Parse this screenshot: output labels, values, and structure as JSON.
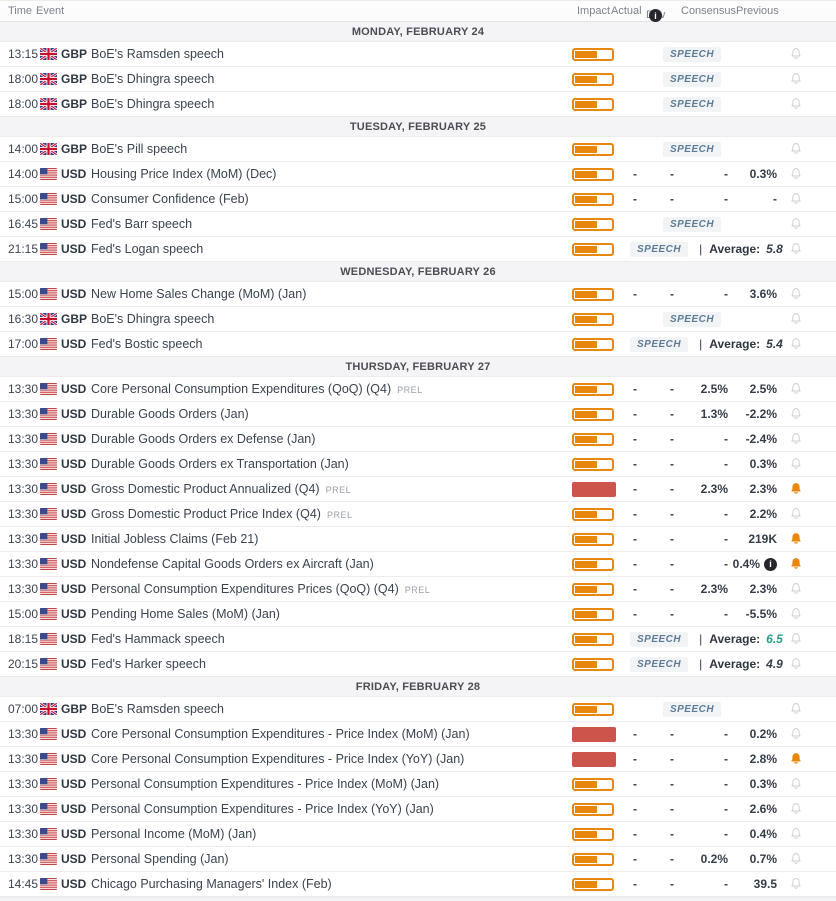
{
  "colors": {
    "impact_medium": "#e8870e",
    "impact_high": "#cc544a",
    "bell_active": "#e8870e",
    "bell_inactive": "#c9cdd3",
    "average_highlight": "#2a9c85",
    "speech_text": "#5b7c99"
  },
  "header": {
    "time": "Time",
    "event": "Event",
    "impact": "Impact",
    "actual": "Actual",
    "dev": "Dev",
    "consensus": "Consensus",
    "previous": "Previous",
    "dev_info": "i"
  },
  "labels": {
    "speech": "SPEECH",
    "average": "Average:",
    "divider": "|",
    "prel": "PREL",
    "revised_info": "i"
  },
  "days": [
    {
      "label": "MONDAY, FEBRUARY 24",
      "events": [
        {
          "time": "13:15",
          "currency": "GBP",
          "title": "BoE's Ramsden speech",
          "impact": "medium",
          "type": "speech",
          "bell": false
        },
        {
          "time": "18:00",
          "currency": "GBP",
          "title": "BoE's Dhingra speech",
          "impact": "medium",
          "type": "speech",
          "bell": false
        },
        {
          "time": "18:00",
          "currency": "GBP",
          "title": "BoE's Dhingra speech",
          "impact": "medium",
          "type": "speech",
          "bell": false
        }
      ]
    },
    {
      "label": "TUESDAY, FEBRUARY 25",
      "events": [
        {
          "time": "14:00",
          "currency": "GBP",
          "title": "BoE's Pill speech",
          "impact": "medium",
          "type": "speech",
          "bell": false
        },
        {
          "time": "14:00",
          "currency": "USD",
          "title": "Housing Price Index (MoM) (Dec)",
          "impact": "medium",
          "type": "data",
          "actual": "-",
          "dev": "-",
          "consensus": "-",
          "previous": "0.3%",
          "bell": false
        },
        {
          "time": "15:00",
          "currency": "USD",
          "title": "Consumer Confidence (Feb)",
          "impact": "medium",
          "type": "data",
          "actual": "-",
          "dev": "-",
          "consensus": "-",
          "previous": "-",
          "bell": false
        },
        {
          "time": "16:45",
          "currency": "USD",
          "title": "Fed's Barr speech",
          "impact": "medium",
          "type": "speech",
          "bell": false
        },
        {
          "time": "21:15",
          "currency": "USD",
          "title": "Fed's Logan speech",
          "impact": "medium",
          "type": "speech_avg",
          "average": "5.8",
          "bell": false
        }
      ]
    },
    {
      "label": "WEDNESDAY, FEBRUARY 26",
      "events": [
        {
          "time": "15:00",
          "currency": "USD",
          "title": "New Home Sales Change (MoM) (Jan)",
          "impact": "medium",
          "type": "data",
          "actual": "-",
          "dev": "-",
          "consensus": "-",
          "previous": "3.6%",
          "bell": false
        },
        {
          "time": "16:30",
          "currency": "GBP",
          "title": "BoE's Dhingra speech",
          "impact": "medium",
          "type": "speech",
          "bell": false
        },
        {
          "time": "17:00",
          "currency": "USD",
          "title": "Fed's Bostic speech",
          "impact": "medium",
          "type": "speech_avg",
          "average": "5.4",
          "bell": false
        }
      ]
    },
    {
      "label": "THURSDAY, FEBRUARY 27",
      "events": [
        {
          "time": "13:30",
          "currency": "USD",
          "title": "Core Personal Consumption Expenditures (QoQ) (Q4)",
          "suffix": "PREL",
          "impact": "medium",
          "type": "data",
          "actual": "-",
          "dev": "-",
          "consensus": "2.5%",
          "previous": "2.5%",
          "bell": false
        },
        {
          "time": "13:30",
          "currency": "USD",
          "title": "Durable Goods Orders (Jan)",
          "impact": "medium",
          "type": "data",
          "actual": "-",
          "dev": "-",
          "consensus": "1.3%",
          "previous": "-2.2%",
          "bell": false
        },
        {
          "time": "13:30",
          "currency": "USD",
          "title": "Durable Goods Orders ex Defense (Jan)",
          "impact": "medium",
          "type": "data",
          "actual": "-",
          "dev": "-",
          "consensus": "-",
          "previous": "-2.4%",
          "bell": false
        },
        {
          "time": "13:30",
          "currency": "USD",
          "title": "Durable Goods Orders ex Transportation (Jan)",
          "impact": "medium",
          "type": "data",
          "actual": "-",
          "dev": "-",
          "consensus": "-",
          "previous": "0.3%",
          "bell": false
        },
        {
          "time": "13:30",
          "currency": "USD",
          "title": "Gross Domestic Product Annualized (Q4)",
          "suffix": "PREL",
          "impact": "high",
          "type": "data",
          "actual": "-",
          "dev": "-",
          "consensus": "2.3%",
          "previous": "2.3%",
          "bell": true
        },
        {
          "time": "13:30",
          "currency": "USD",
          "title": "Gross Domestic Product Price Index (Q4)",
          "suffix": "PREL",
          "impact": "medium",
          "type": "data",
          "actual": "-",
          "dev": "-",
          "consensus": "-",
          "previous": "2.2%",
          "bell": false
        },
        {
          "time": "13:30",
          "currency": "USD",
          "title": "Initial Jobless Claims (Feb 21)",
          "impact": "medium",
          "type": "data",
          "actual": "-",
          "dev": "-",
          "consensus": "-",
          "previous": "219K",
          "bell": true
        },
        {
          "time": "13:30",
          "currency": "USD",
          "title": "Nondefense Capital Goods Orders ex Aircraft (Jan)",
          "impact": "medium",
          "type": "data",
          "actual": "-",
          "dev": "-",
          "consensus": "-",
          "previous": "0.4%",
          "previous_revised": true,
          "bell": true
        },
        {
          "time": "13:30",
          "currency": "USD",
          "title": "Personal Consumption Expenditures Prices (QoQ) (Q4)",
          "suffix": "PREL",
          "impact": "medium",
          "type": "data",
          "actual": "-",
          "dev": "-",
          "consensus": "2.3%",
          "previous": "2.3%",
          "bell": false
        },
        {
          "time": "15:00",
          "currency": "USD",
          "title": "Pending Home Sales (MoM) (Jan)",
          "impact": "medium",
          "type": "data",
          "actual": "-",
          "dev": "-",
          "consensus": "-",
          "previous": "-5.5%",
          "bell": false
        },
        {
          "time": "18:15",
          "currency": "USD",
          "title": "Fed's Hammack speech",
          "impact": "medium",
          "type": "speech_avg",
          "average": "6.5",
          "average_highlight": true,
          "bell": false
        },
        {
          "time": "20:15",
          "currency": "USD",
          "title": "Fed's Harker speech",
          "impact": "medium",
          "type": "speech_avg",
          "average": "4.9",
          "bell": false
        }
      ]
    },
    {
      "label": "FRIDAY, FEBRUARY 28",
      "events": [
        {
          "time": "07:00",
          "currency": "GBP",
          "title": "BoE's Ramsden speech",
          "impact": "medium",
          "type": "speech",
          "bell": false
        },
        {
          "time": "13:30",
          "currency": "USD",
          "title": "Core Personal Consumption Expenditures - Price Index (MoM) (Jan)",
          "impact": "high",
          "type": "data",
          "actual": "-",
          "dev": "-",
          "consensus": "-",
          "previous": "0.2%",
          "bell": false
        },
        {
          "time": "13:30",
          "currency": "USD",
          "title": "Core Personal Consumption Expenditures - Price Index (YoY) (Jan)",
          "impact": "high",
          "type": "data",
          "actual": "-",
          "dev": "-",
          "consensus": "-",
          "previous": "2.8%",
          "bell": true
        },
        {
          "time": "13:30",
          "currency": "USD",
          "title": "Personal Consumption Expenditures - Price Index (MoM) (Jan)",
          "impact": "medium",
          "type": "data",
          "actual": "-",
          "dev": "-",
          "consensus": "-",
          "previous": "0.3%",
          "bell": false
        },
        {
          "time": "13:30",
          "currency": "USD",
          "title": "Personal Consumption Expenditures - Price Index (YoY) (Jan)",
          "impact": "medium",
          "type": "data",
          "actual": "-",
          "dev": "-",
          "consensus": "-",
          "previous": "2.6%",
          "bell": false
        },
        {
          "time": "13:30",
          "currency": "USD",
          "title": "Personal Income (MoM) (Jan)",
          "impact": "medium",
          "type": "data",
          "actual": "-",
          "dev": "-",
          "consensus": "-",
          "previous": "0.4%",
          "bell": false
        },
        {
          "time": "13:30",
          "currency": "USD",
          "title": "Personal Spending (Jan)",
          "impact": "medium",
          "type": "data",
          "actual": "-",
          "dev": "-",
          "consensus": "0.2%",
          "previous": "0.7%",
          "bell": false
        },
        {
          "time": "14:45",
          "currency": "USD",
          "title": "Chicago Purchasing Managers' Index (Feb)",
          "impact": "medium",
          "type": "data",
          "actual": "-",
          "dev": "-",
          "consensus": "-",
          "previous": "39.5",
          "bell": false
        }
      ]
    }
  ]
}
